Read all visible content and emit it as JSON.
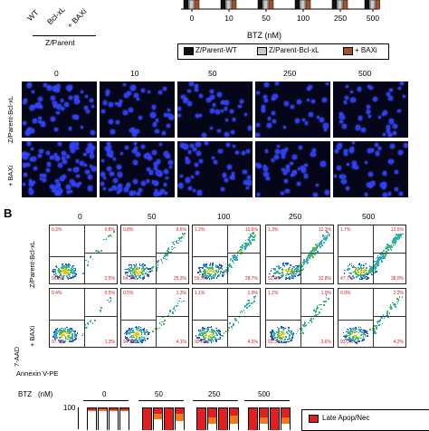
{
  "panelA": {
    "lines": [
      "WT",
      "Bcl-xL",
      "+ BAXi"
    ],
    "group_label": "Z/Parent",
    "bar_axis_label": "BTZ (nM)",
    "bar_ticks": [
      "0",
      "10",
      "50",
      "100",
      "250",
      "500"
    ],
    "legend": [
      {
        "label": "Z/Parent-WT",
        "color": "#111111"
      },
      {
        "label": "Z/Parent-Bcl-xL",
        "color": "#c8c8c8"
      },
      {
        "label": "+ BAXi",
        "color": "#a0522d"
      }
    ],
    "micro_doses": [
      "0",
      "10",
      "50",
      "250",
      "500"
    ],
    "micro_rows": [
      "Z/Parent-Bcl-xL",
      "+ BAXi"
    ]
  },
  "panelB": {
    "label": "B",
    "doses": [
      "0",
      "50",
      "100",
      "250",
      "500"
    ],
    "rows": [
      "Z/Parent-Bcl-xL",
      "+ BAXi"
    ],
    "y_axis": "7-AAD",
    "x_axis": "Annexin V-PE",
    "quadrants": [
      [
        {
          "ul": "0.3%",
          "ur": "0.8%",
          "ll": "96.5%",
          "lr": "2.5%"
        },
        {
          "ul": "0.8%",
          "ur": "9.6%",
          "ll": "64.3%",
          "lr": "25.3%"
        },
        {
          "ul": "1.2%",
          "ur": "10.6%",
          "ll": "59.5%",
          "lr": "28.7%"
        },
        {
          "ul": "1.3%",
          "ur": "12.3%",
          "ll": "53.6%",
          "lr": "32.8%"
        },
        {
          "ul": "1.7%",
          "ur": "12.5%",
          "ll": "47.7%",
          "lr": "38.0%"
        }
      ],
      [
        {
          "ul": "0.4%",
          "ur": "0.5%",
          "ll": "97.7%",
          "lr": "1.3%"
        },
        {
          "ul": "0.5%",
          "ur": "1.3%",
          "ll": "94.1%",
          "lr": "4.1%"
        },
        {
          "ul": "1.1%",
          "ur": "1.9%",
          "ll": "92.6%",
          "lr": "4.5%"
        },
        {
          "ul": "1.2%",
          "ur": "1.9%",
          "ll": "93.3%",
          "lr": "3.6%"
        },
        {
          "ul": "0.9%",
          "ur": "2.2%",
          "ll": "93.3%",
          "lr": "4.2%"
        }
      ]
    ]
  },
  "panelC": {
    "axis_label": "BTZ",
    "unit_label": "(nM)",
    "doses": [
      "0",
      "50",
      "250",
      "500"
    ],
    "y_top": "100",
    "legend": "Late Apop/Nec",
    "legend_color": "#e02020"
  },
  "colors": {
    "late": "#e02020",
    "early": "#f07a1a",
    "live": "#ffffff",
    "nucleus": "#2a3cff"
  }
}
